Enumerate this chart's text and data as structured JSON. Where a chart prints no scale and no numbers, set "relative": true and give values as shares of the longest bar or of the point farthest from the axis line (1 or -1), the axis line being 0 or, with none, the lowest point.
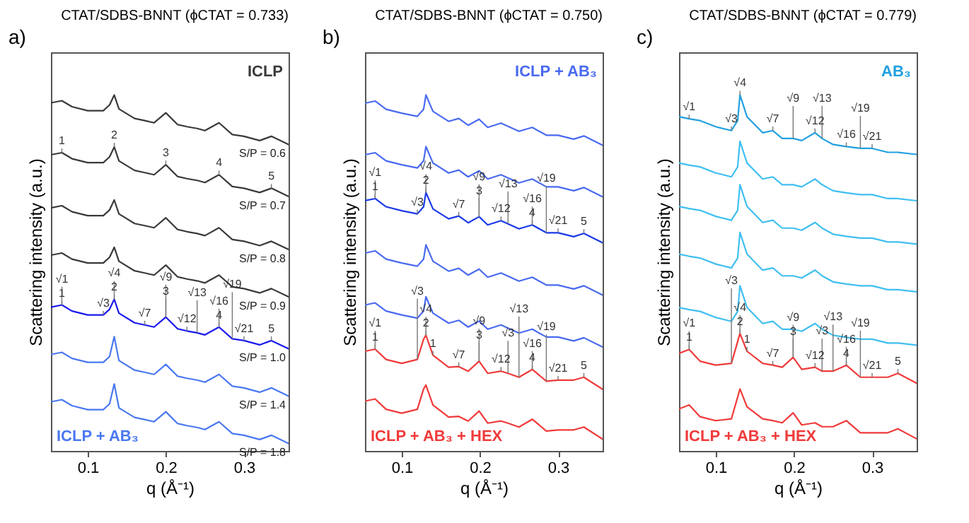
{
  "chart_data": [
    {
      "type": "line",
      "title": "CTAT/SDBS-BNNT (ϕCTAT = 0.733)",
      "xlabel": "q (Å⁻¹)",
      "ylabel": "Scattering intensity (a.u.)",
      "relative": true,
      "xlim": [
        0.053,
        0.357
      ],
      "xticks": [
        0.1,
        0.2,
        0.3
      ],
      "x": [
        0.053,
        0.067,
        0.08,
        0.1,
        0.12,
        0.128,
        0.134,
        0.14,
        0.16,
        0.173,
        0.185,
        0.2,
        0.215,
        0.227,
        0.24,
        0.25,
        0.268,
        0.285,
        0.3,
        0.32,
        0.335,
        0.357
      ],
      "series": [
        {
          "name": "S/P = 0.6",
          "color": "#3a3a3a",
          "values": [
            0.978,
            0.984,
            0.967,
            0.956,
            0.956,
            0.972,
            1.0,
            0.961,
            0.934,
            0.928,
            0.922,
            0.95,
            0.917,
            0.911,
            0.906,
            0.9,
            0.922,
            0.889,
            0.884,
            0.872,
            0.884,
            0.861
          ]
        },
        {
          "name": "S/P = 0.7",
          "color": "#3a3a3a",
          "values": [
            0.832,
            0.838,
            0.821,
            0.81,
            0.81,
            0.826,
            0.854,
            0.815,
            0.788,
            0.782,
            0.776,
            0.804,
            0.771,
            0.765,
            0.76,
            0.754,
            0.776,
            0.743,
            0.738,
            0.726,
            0.738,
            0.715
          ]
        },
        {
          "name": "S/P = 0.8",
          "color": "#3a3a3a",
          "values": [
            0.683,
            0.689,
            0.672,
            0.661,
            0.661,
            0.677,
            0.705,
            0.666,
            0.639,
            0.633,
            0.627,
            0.655,
            0.622,
            0.616,
            0.611,
            0.605,
            0.627,
            0.594,
            0.589,
            0.577,
            0.589,
            0.566
          ]
        },
        {
          "name": "S/P = 0.9",
          "color": "#3a3a3a",
          "values": [
            0.55,
            0.556,
            0.539,
            0.528,
            0.528,
            0.544,
            0.572,
            0.533,
            0.506,
            0.5,
            0.494,
            0.522,
            0.489,
            0.483,
            0.478,
            0.472,
            0.494,
            0.461,
            0.456,
            0.444,
            0.456,
            0.433
          ]
        },
        {
          "name": "S/P = 1.0",
          "color": "#1a1aee",
          "values": [
            0.404,
            0.41,
            0.393,
            0.382,
            0.382,
            0.398,
            0.426,
            0.387,
            0.36,
            0.354,
            0.348,
            0.376,
            0.343,
            0.337,
            0.332,
            0.326,
            0.348,
            0.315,
            0.31,
            0.298,
            0.31,
            0.287
          ]
        },
        {
          "name": "S/P = 1.4",
          "color": "#4a78f0",
          "values": [
            0.271,
            0.277,
            0.26,
            0.249,
            0.249,
            0.265,
            0.321,
            0.254,
            0.227,
            0.221,
            0.215,
            0.243,
            0.21,
            0.204,
            0.199,
            0.193,
            0.215,
            0.182,
            0.177,
            0.165,
            0.177,
            0.154
          ]
        },
        {
          "name": "S/P = 1.8",
          "color": "#4a78f0",
          "values": [
            0.138,
            0.144,
            0.127,
            0.116,
            0.116,
            0.132,
            0.188,
            0.121,
            0.094,
            0.088,
            0.082,
            0.11,
            0.077,
            0.071,
            0.066,
            0.06,
            0.082,
            0.049,
            0.044,
            0.032,
            0.044,
            0.021
          ]
        }
      ],
      "annotations": [
        "a)",
        "ICLP",
        "ICLP + AB₃",
        {
          "text": "1",
          "x": 0.067,
          "y": 0.838
        },
        {
          "text": "2",
          "x": 0.134,
          "y": 0.854
        },
        {
          "text": "3",
          "x": 0.2,
          "y": 0.804
        },
        {
          "text": "4",
          "x": 0.268,
          "y": 0.776
        },
        {
          "text": "5",
          "x": 0.335,
          "y": 0.738
        },
        {
          "text": "1",
          "x": 0.067,
          "y": 0.41
        },
        {
          "text": "√1",
          "x": 0.067,
          "y": 0.41
        },
        {
          "text": "2",
          "x": 0.134,
          "y": 0.426
        },
        {
          "text": "√4",
          "x": 0.134,
          "y": 0.426
        },
        {
          "text": "√3",
          "x": 0.12,
          "y": 0.382
        },
        {
          "text": "√7",
          "x": 0.173,
          "y": 0.354
        },
        {
          "text": "3",
          "x": 0.2,
          "y": 0.376
        },
        {
          "text": "√9",
          "x": 0.2,
          "y": 0.376
        },
        {
          "text": "√12",
          "x": 0.227,
          "y": 0.337
        },
        {
          "text": "√13",
          "x": 0.24,
          "y": 0.332
        },
        {
          "text": "4",
          "x": 0.268,
          "y": 0.348
        },
        {
          "text": "√16",
          "x": 0.268,
          "y": 0.348
        },
        {
          "text": "√19",
          "x": 0.285,
          "y": 0.315
        },
        {
          "text": "√21",
          "x": 0.3,
          "y": 0.31
        },
        {
          "text": "5",
          "x": 0.335,
          "y": 0.31
        }
      ]
    },
    {
      "type": "line",
      "title": "CTAT/SDBS-BNNT (ϕCTAT = 0.750)",
      "xlabel": "q (Å⁻¹)",
      "ylabel": "Scattering intensity (a.u.)",
      "relative": true,
      "xlim": [
        0.053,
        0.357
      ],
      "xticks": [
        0.1,
        0.2,
        0.3
      ],
      "x": [
        0.053,
        0.066,
        0.08,
        0.1,
        0.12,
        0.128,
        0.131,
        0.14,
        0.16,
        0.173,
        0.185,
        0.199,
        0.21,
        0.227,
        0.236,
        0.25,
        0.267,
        0.285,
        0.3,
        0.32,
        0.333,
        0.357
      ],
      "series": [
        {
          "color": "#4a6af0",
          "values": [
            0.977,
            0.983,
            0.96,
            0.949,
            0.94,
            0.96,
            1.0,
            0.954,
            0.926,
            0.934,
            0.915,
            0.932,
            0.909,
            0.921,
            0.912,
            0.898,
            0.909,
            0.887,
            0.887,
            0.876,
            0.885,
            0.859
          ]
        },
        {
          "color": "#4a6af0",
          "values": [
            0.832,
            0.838,
            0.815,
            0.804,
            0.795,
            0.815,
            0.855,
            0.809,
            0.781,
            0.789,
            0.77,
            0.787,
            0.764,
            0.776,
            0.767,
            0.753,
            0.764,
            0.742,
            0.742,
            0.731,
            0.74,
            0.714
          ]
        },
        {
          "color": "#1a3ae8",
          "values": [
            0.703,
            0.709,
            0.686,
            0.675,
            0.666,
            0.686,
            0.726,
            0.68,
            0.652,
            0.66,
            0.641,
            0.658,
            0.635,
            0.647,
            0.638,
            0.624,
            0.635,
            0.613,
            0.613,
            0.602,
            0.611,
            0.585
          ]
        },
        {
          "color": "#4a6af0",
          "values": [
            0.556,
            0.562,
            0.539,
            0.528,
            0.519,
            0.539,
            0.579,
            0.533,
            0.505,
            0.513,
            0.494,
            0.511,
            0.488,
            0.5,
            0.491,
            0.477,
            0.488,
            0.466,
            0.466,
            0.455,
            0.464,
            0.438
          ]
        },
        {
          "color": "#4a6af0",
          "values": [
            0.41,
            0.416,
            0.393,
            0.382,
            0.373,
            0.393,
            0.433,
            0.387,
            0.359,
            0.367,
            0.348,
            0.365,
            0.342,
            0.354,
            0.345,
            0.331,
            0.342,
            0.32,
            0.32,
            0.309,
            0.318,
            0.292
          ]
        },
        {
          "color": "#f03a3a",
          "values": [
            0.28,
            0.286,
            0.257,
            0.246,
            0.257,
            0.314,
            0.325,
            0.269,
            0.235,
            0.237,
            0.224,
            0.252,
            0.218,
            0.224,
            0.218,
            0.207,
            0.229,
            0.196,
            0.199,
            0.199,
            0.207,
            0.173
          ]
        },
        {
          "color": "#f03a3a",
          "values": [
            0.14,
            0.146,
            0.117,
            0.106,
            0.117,
            0.174,
            0.185,
            0.129,
            0.095,
            0.097,
            0.084,
            0.112,
            0.078,
            0.084,
            0.078,
            0.067,
            0.089,
            0.056,
            0.059,
            0.059,
            0.067,
            0.033
          ]
        }
      ],
      "annotations": [
        "b)",
        "ICLP + AB₃",
        "ICLP + AB₃ + HEX",
        {
          "text": "1",
          "x": 0.066,
          "y": 0.709
        },
        {
          "text": "√1",
          "x": 0.066,
          "y": 0.709
        },
        {
          "text": "2",
          "x": 0.131,
          "y": 0.726
        },
        {
          "text": "√4",
          "x": 0.131,
          "y": 0.726
        },
        {
          "text": "√3",
          "x": 0.12,
          "y": 0.666
        },
        {
          "text": "√7",
          "x": 0.173,
          "y": 0.66
        },
        {
          "text": "3",
          "x": 0.199,
          "y": 0.658
        },
        {
          "text": "√9",
          "x": 0.199,
          "y": 0.658
        },
        {
          "text": "√12",
          "x": 0.227,
          "y": 0.647
        },
        {
          "text": "√13",
          "x": 0.236,
          "y": 0.638
        },
        {
          "text": "4",
          "x": 0.267,
          "y": 0.635
        },
        {
          "text": "√16",
          "x": 0.267,
          "y": 0.635
        },
        {
          "text": "√19",
          "x": 0.285,
          "y": 0.613
        },
        {
          "text": "√21",
          "x": 0.3,
          "y": 0.613
        },
        {
          "text": "5",
          "x": 0.333,
          "y": 0.611
        },
        {
          "text": "1",
          "x": 0.066,
          "y": 0.286
        },
        {
          "text": "√1",
          "x": 0.066,
          "y": 0.286
        },
        {
          "text": "2",
          "x": 0.131,
          "y": 0.325
        },
        {
          "text": "√4",
          "x": 0.131,
          "y": 0.325
        },
        {
          "text": "1",
          "x": 0.14,
          "y": 0.269
        },
        {
          "text": "√3",
          "x": 0.12,
          "y": 0.257
        },
        {
          "text": "√7",
          "x": 0.173,
          "y": 0.237
        },
        {
          "text": "3",
          "x": 0.199,
          "y": 0.252
        },
        {
          "text": "√9",
          "x": 0.199,
          "y": 0.252
        },
        {
          "text": "√12",
          "x": 0.227,
          "y": 0.224
        },
        {
          "text": "√3",
          "x": 0.236,
          "y": 0.218
        },
        {
          "text": "√13",
          "x": 0.25,
          "y": 0.207
        },
        {
          "text": "4",
          "x": 0.267,
          "y": 0.229
        },
        {
          "text": "√16",
          "x": 0.267,
          "y": 0.229
        },
        {
          "text": "√19",
          "x": 0.285,
          "y": 0.196
        },
        {
          "text": "√21",
          "x": 0.3,
          "y": 0.199
        },
        {
          "text": "5",
          "x": 0.333,
          "y": 0.207
        }
      ]
    },
    {
      "type": "line",
      "title": "CTAT/SDBS-BNNT (ϕCTAT = 0.779)",
      "xlabel": "q (Å⁻¹)",
      "ylabel": "Scattering intensity (a.u.)",
      "relative": true,
      "xlim": [
        0.053,
        0.357
      ],
      "xticks": [
        0.1,
        0.2,
        0.3
      ],
      "x": [
        0.053,
        0.066,
        0.08,
        0.1,
        0.12,
        0.128,
        0.131,
        0.14,
        0.16,
        0.173,
        0.185,
        0.199,
        0.21,
        0.227,
        0.236,
        0.25,
        0.267,
        0.285,
        0.3,
        0.32,
        0.333,
        0.357
      ],
      "series": [
        {
          "color": "#22a0e0",
          "values": [
            0.939,
            0.933,
            0.928,
            0.911,
            0.9,
            0.928,
            1.0,
            0.939,
            0.894,
            0.9,
            0.878,
            0.878,
            0.872,
            0.894,
            0.878,
            0.861,
            0.855,
            0.85,
            0.85,
            0.839,
            0.839,
            0.833
          ]
        },
        {
          "color": "#40bff0",
          "values": [
            0.809,
            0.803,
            0.798,
            0.781,
            0.77,
            0.798,
            0.87,
            0.809,
            0.764,
            0.77,
            0.748,
            0.748,
            0.742,
            0.764,
            0.748,
            0.731,
            0.725,
            0.72,
            0.72,
            0.709,
            0.709,
            0.703
          ]
        },
        {
          "color": "#40bff0",
          "values": [
            0.687,
            0.681,
            0.676,
            0.659,
            0.648,
            0.676,
            0.748,
            0.687,
            0.642,
            0.648,
            0.626,
            0.626,
            0.62,
            0.642,
            0.626,
            0.609,
            0.603,
            0.598,
            0.598,
            0.587,
            0.587,
            0.581
          ]
        },
        {
          "color": "#40bff0",
          "values": [
            0.553,
            0.547,
            0.542,
            0.525,
            0.514,
            0.542,
            0.614,
            0.553,
            0.508,
            0.514,
            0.492,
            0.492,
            0.486,
            0.508,
            0.492,
            0.475,
            0.469,
            0.464,
            0.464,
            0.453,
            0.453,
            0.447
          ]
        },
        {
          "color": "#40bff0",
          "values": [
            0.403,
            0.397,
            0.392,
            0.375,
            0.364,
            0.392,
            0.464,
            0.403,
            0.358,
            0.364,
            0.342,
            0.342,
            0.336,
            0.358,
            0.342,
            0.325,
            0.319,
            0.314,
            0.314,
            0.303,
            0.303,
            0.297
          ]
        },
        {
          "color": "#f03a3a",
          "values": [
            0.274,
            0.285,
            0.252,
            0.241,
            0.246,
            0.307,
            0.33,
            0.28,
            0.246,
            0.241,
            0.235,
            0.263,
            0.229,
            0.235,
            0.224,
            0.224,
            0.241,
            0.207,
            0.207,
            0.207,
            0.218,
            0.19
          ]
        },
        {
          "color": "#f03a3a",
          "values": [
            0.118,
            0.129,
            0.096,
            0.085,
            0.09,
            0.151,
            0.174,
            0.124,
            0.09,
            0.085,
            0.079,
            0.107,
            0.073,
            0.079,
            0.068,
            0.068,
            0.085,
            0.051,
            0.051,
            0.051,
            0.062,
            0.034
          ]
        }
      ],
      "annotations": [
        "c)",
        "AB₃",
        "ICLP + AB₃ + HEX",
        {
          "text": "√1",
          "x": 0.066,
          "y": 0.933
        },
        {
          "text": "√3",
          "x": 0.12,
          "y": 0.9
        },
        {
          "text": "√4",
          "x": 0.131,
          "y": 1.0
        },
        {
          "text": "√7",
          "x": 0.173,
          "y": 0.9
        },
        {
          "text": "√9",
          "x": 0.199,
          "y": 0.878
        },
        {
          "text": "√12",
          "x": 0.227,
          "y": 0.894
        },
        {
          "text": "√13",
          "x": 0.236,
          "y": 0.878
        },
        {
          "text": "√16",
          "x": 0.267,
          "y": 0.855
        },
        {
          "text": "√19",
          "x": 0.285,
          "y": 0.85
        },
        {
          "text": "√21",
          "x": 0.3,
          "y": 0.85
        },
        {
          "text": "1",
          "x": 0.066,
          "y": 0.285
        },
        {
          "text": "√1",
          "x": 0.066,
          "y": 0.285
        },
        {
          "text": "2",
          "x": 0.131,
          "y": 0.33
        },
        {
          "text": "√4",
          "x": 0.131,
          "y": 0.33
        },
        {
          "text": "1",
          "x": 0.14,
          "y": 0.28
        },
        {
          "text": "√3",
          "x": 0.12,
          "y": 0.246
        },
        {
          "text": "√7",
          "x": 0.173,
          "y": 0.241
        },
        {
          "text": "3",
          "x": 0.199,
          "y": 0.263
        },
        {
          "text": "√9",
          "x": 0.199,
          "y": 0.263
        },
        {
          "text": "√12",
          "x": 0.227,
          "y": 0.235
        },
        {
          "text": "√3",
          "x": 0.236,
          "y": 0.224
        },
        {
          "text": "√13",
          "x": 0.25,
          "y": 0.224
        },
        {
          "text": "4",
          "x": 0.267,
          "y": 0.241
        },
        {
          "text": "√16",
          "x": 0.267,
          "y": 0.241
        },
        {
          "text": "√19",
          "x": 0.285,
          "y": 0.207
        },
        {
          "text": "√21",
          "x": 0.3,
          "y": 0.207
        },
        {
          "text": "5",
          "x": 0.333,
          "y": 0.218
        }
      ]
    }
  ]
}
